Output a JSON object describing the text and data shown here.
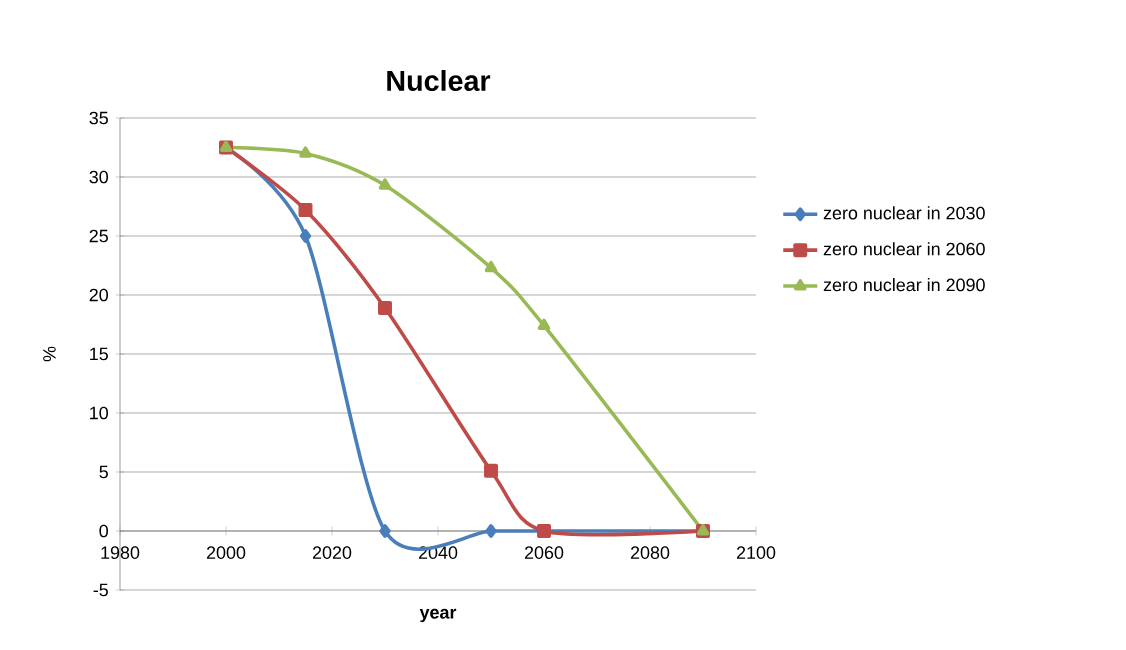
{
  "chart_data": {
    "type": "line",
    "title": "Nuclear",
    "xlabel": "year",
    "ylabel": "%",
    "x": [
      2000,
      2015,
      2030,
      2050,
      2060,
      2090
    ],
    "series": [
      {
        "name": "zero nuclear in 2030",
        "color": "#4a7ebb",
        "marker": "diamond",
        "values": [
          32.5,
          25,
          0,
          0,
          0,
          0
        ]
      },
      {
        "name": "zero nuclear in 2060",
        "color": "#be4b48",
        "marker": "square",
        "values": [
          32.5,
          27.2,
          18.9,
          5.1,
          0,
          0
        ]
      },
      {
        "name": "zero nuclear in 2090",
        "color": "#98b954",
        "marker": "triangle",
        "values": [
          32.5,
          32,
          29.3,
          22.3,
          17.4,
          0
        ]
      }
    ],
    "xlim": [
      1980,
      2100
    ],
    "xticks": [
      1980,
      2000,
      2020,
      2040,
      2060,
      2080,
      2100
    ],
    "ylim": [
      -5,
      35
    ],
    "yticks": [
      -5,
      0,
      5,
      10,
      15,
      20,
      25,
      30,
      35
    ],
    "grid": "y",
    "legend": "right",
    "line_style": "solid"
  }
}
